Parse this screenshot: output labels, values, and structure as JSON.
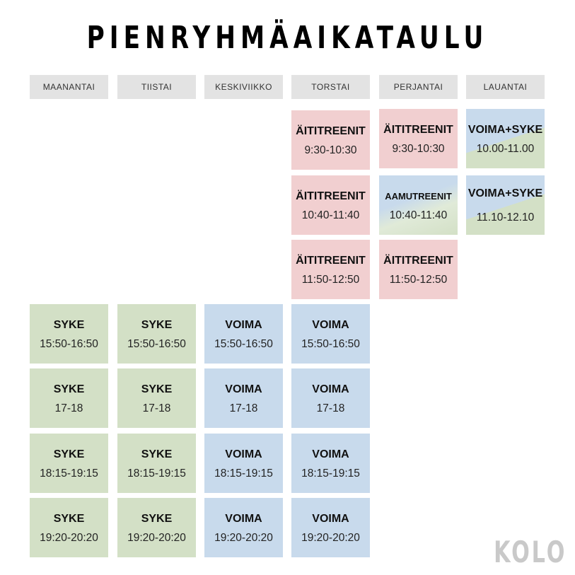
{
  "title": "PIENRYHMÄAIKATAULU",
  "logo": "KOLO",
  "days": [
    "MAANANTAI",
    "TIISTAI",
    "KESKIVIIKKO",
    "TORSTAI",
    "PERJANTAI",
    "LAUANTAI"
  ],
  "colors": {
    "syke": "#d3e0c6",
    "voima": "#c8daec",
    "aititreenit": "#f1cfd0",
    "header": "#e3e3e3"
  },
  "schedule": {
    "maanantai": [
      {
        "name": "SYKE",
        "time": "15:50-16:50"
      },
      {
        "name": "SYKE",
        "time": "17-18"
      },
      {
        "name": "SYKE",
        "time": "18:15-19:15"
      },
      {
        "name": "SYKE",
        "time": "19:20-20:20"
      }
    ],
    "tiistai": [
      {
        "name": "SYKE",
        "time": "15:50-16:50"
      },
      {
        "name": "SYKE",
        "time": "17-18"
      },
      {
        "name": "SYKE",
        "time": "18:15-19:15"
      },
      {
        "name": "SYKE",
        "time": "19:20-20:20"
      }
    ],
    "keskiviikko": [
      {
        "name": "VOIMA",
        "time": "15:50-16:50"
      },
      {
        "name": "VOIMA",
        "time": "17-18"
      },
      {
        "name": "VOIMA",
        "time": "18:15-19:15"
      },
      {
        "name": "VOIMA",
        "time": "19:20-20:20"
      }
    ],
    "torstai": [
      {
        "name": "ÄITITREENIT",
        "time": "9:30-10:30"
      },
      {
        "name": "ÄITITREENIT",
        "time": "10:40-11:40"
      },
      {
        "name": "ÄITITREENIT",
        "time": "11:50-12:50"
      },
      {
        "name": "VOIMA",
        "time": "15:50-16:50"
      },
      {
        "name": "VOIMA",
        "time": "17-18"
      },
      {
        "name": "VOIMA",
        "time": "18:15-19:15"
      },
      {
        "name": "VOIMA",
        "time": "19:20-20:20"
      }
    ],
    "perjantai": [
      {
        "name": "ÄITITREENIT",
        "time": "9:30-10:30"
      },
      {
        "name": "AAMUTREENIT",
        "time": "10:40-11:40"
      },
      {
        "name": "ÄITITREENIT",
        "time": "11:50-12:50"
      }
    ],
    "lauantai": [
      {
        "name": "VOIMA+SYKE",
        "time": "10.00-11.00"
      },
      {
        "name": "VOIMA+SYKE",
        "time": "11.10-12.10"
      }
    ]
  }
}
